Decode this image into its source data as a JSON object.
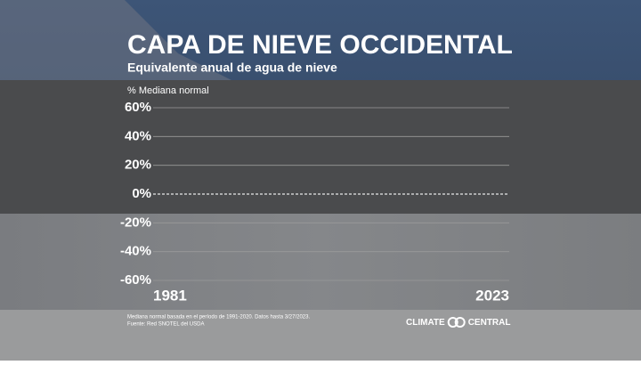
{
  "chart_data": {
    "type": "bar",
    "title": "CAPA DE NIEVE OCCIDENTAL",
    "subtitle": "Equivalente anual de agua de nieve",
    "y_label": "% Mediana normal",
    "xlim": [
      1981,
      2023
    ],
    "xticks": [
      1981,
      2023
    ],
    "ylim": [
      -60,
      60
    ],
    "yticks": [
      {
        "value": 60,
        "label": "60%"
      },
      {
        "value": 40,
        "label": "40%"
      },
      {
        "value": 20,
        "label": "20%"
      },
      {
        "value": 0,
        "label": "0%"
      },
      {
        "value": -20,
        "label": "-20%"
      },
      {
        "value": -40,
        "label": "-40%"
      },
      {
        "value": -60,
        "label": "-60%"
      }
    ],
    "grid": true,
    "notes": [
      "Mediana normal basada en el período de 1991-2020. Datos hasta 3/27/2023.",
      "Fuente: Red SNOTEL del USDA"
    ],
    "credit": "CLIMATE CENTRAL"
  }
}
